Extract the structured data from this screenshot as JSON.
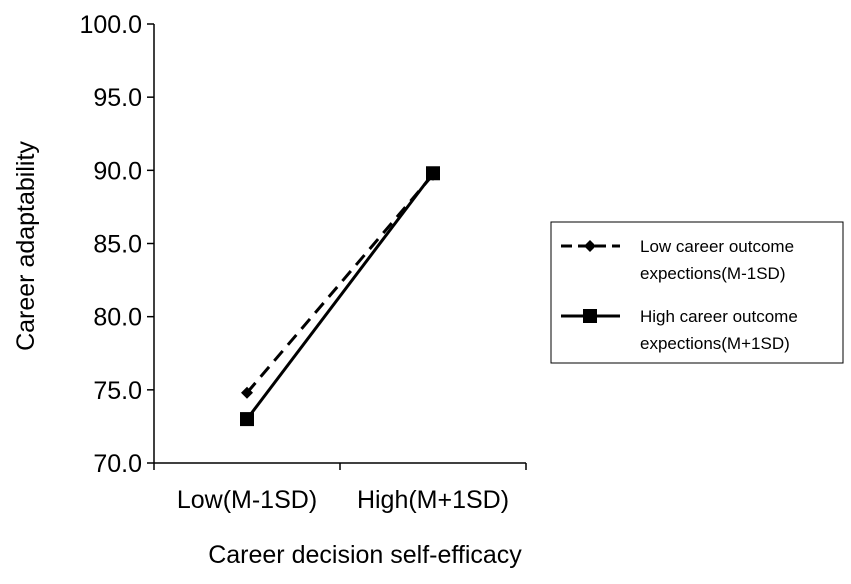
{
  "chart_data": {
    "type": "line",
    "title": "",
    "xlabel": "Career decision self-efficacy",
    "ylabel": "Career adaptability",
    "categories": [
      "Low(M-1SD)",
      "High(M+1SD)"
    ],
    "ylim": [
      70.0,
      100.0
    ],
    "yticks": [
      "70.0",
      "75.0",
      "80.0",
      "85.0",
      "90.0",
      "95.0",
      "100.0"
    ],
    "grid": false,
    "legend_position": "right",
    "series": [
      {
        "name_lines": [
          "Low career outcome",
          "expections(M-1SD)"
        ],
        "values": [
          74.8,
          89.7
        ],
        "style": "dashed",
        "marker": "diamond",
        "color": "#000000"
      },
      {
        "name_lines": [
          "High career outcome",
          "expections(M+1SD)"
        ],
        "values": [
          73.0,
          89.8
        ],
        "style": "solid",
        "marker": "square",
        "color": "#000000"
      }
    ]
  }
}
